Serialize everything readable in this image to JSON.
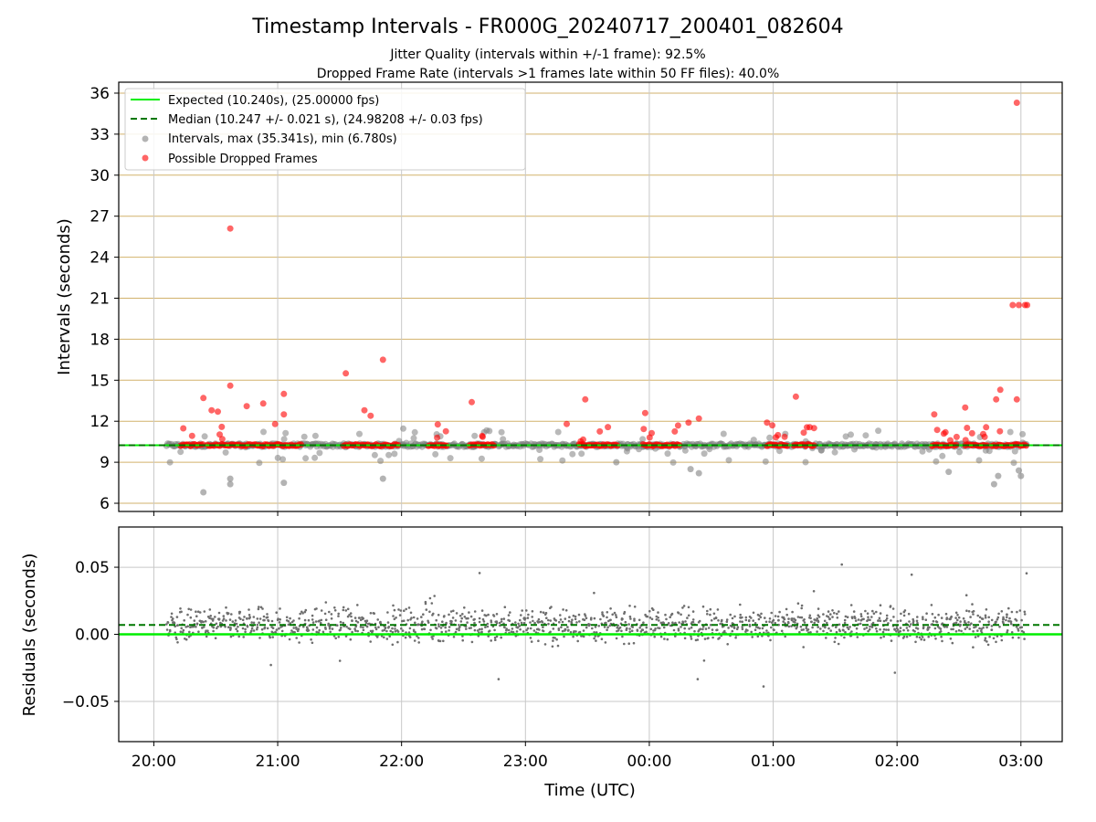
{
  "title": "Timestamp Intervals - FR000G_20240717_200401_082604",
  "subtitle_1": "Jitter Quality (intervals within +/-1 frame): 92.5%",
  "subtitle_2": "Dropped Frame Rate (intervals >1 frames late within 50 FF files): 40.0%",
  "colors": {
    "expected": "#00ee00",
    "median": "#007700",
    "intervals": "#808080",
    "dropped": "#ff0000",
    "hgrid_top": "#d2b26c",
    "grid": "#c8c8c8"
  },
  "chart_data": [
    {
      "type": "scatter",
      "ylabel": "Intervals (seconds)",
      "ylim": [
        5.4,
        36.8
      ],
      "yticks": [
        "6",
        "9",
        "12",
        "15",
        "18",
        "21",
        "24",
        "27",
        "30",
        "33",
        "36"
      ],
      "legend_position": "upper-left",
      "grid": true,
      "legend": {
        "expected": "Expected (10.240s), (25.00000 fps)",
        "median": "Median (10.247 +/- 0.021 s), (24.98208 +/- 0.03 fps)",
        "intervals": "Intervals, max (35.341s), min (6.780s)",
        "dropped": "Possible Dropped Frames"
      },
      "expected_value": 10.24,
      "median_value": 10.247,
      "outliers_high": [
        {
          "t": "20:24",
          "y": 13.7
        },
        {
          "t": "20:28",
          "y": 12.8
        },
        {
          "t": "20:31",
          "y": 12.7
        },
        {
          "t": "20:37",
          "y": 26.1
        },
        {
          "t": "20:37",
          "y": 14.6
        },
        {
          "t": "20:45",
          "y": 13.1
        },
        {
          "t": "20:53",
          "y": 13.3
        },
        {
          "t": "21:03",
          "y": 14.0
        },
        {
          "t": "21:03",
          "y": 12.5
        },
        {
          "t": "21:33",
          "y": 15.5
        },
        {
          "t": "21:42",
          "y": 12.8
        },
        {
          "t": "21:45",
          "y": 12.4
        },
        {
          "t": "21:51",
          "y": 16.5
        },
        {
          "t": "22:34",
          "y": 13.4
        },
        {
          "t": "23:20",
          "y": 11.8
        },
        {
          "t": "23:29",
          "y": 13.6
        },
        {
          "t": "23:58",
          "y": 12.6
        },
        {
          "t": "00:19",
          "y": 11.9
        },
        {
          "t": "00:24",
          "y": 12.2
        },
        {
          "t": "00:57",
          "y": 11.9
        },
        {
          "t": "01:11",
          "y": 13.8
        },
        {
          "t": "02:18",
          "y": 12.5
        },
        {
          "t": "02:33",
          "y": 13.0
        },
        {
          "t": "02:48",
          "y": 13.6
        },
        {
          "t": "02:50",
          "y": 14.3
        },
        {
          "t": "02:56",
          "y": 20.5
        },
        {
          "t": "02:58",
          "y": 35.3
        },
        {
          "t": "02:58",
          "y": 13.6
        },
        {
          "t": "02:59",
          "y": 20.5
        },
        {
          "t": "03:02",
          "y": 20.5
        },
        {
          "t": "03:03",
          "y": 20.5
        }
      ],
      "outliers_low": [
        {
          "t": "20:24",
          "y": 6.8
        },
        {
          "t": "20:37",
          "y": 7.4
        },
        {
          "t": "20:37",
          "y": 7.8
        },
        {
          "t": "21:03",
          "y": 7.5
        },
        {
          "t": "21:51",
          "y": 7.8
        },
        {
          "t": "23:44",
          "y": 9.0
        },
        {
          "t": "00:20",
          "y": 8.5
        },
        {
          "t": "00:24",
          "y": 8.2
        },
        {
          "t": "02:25",
          "y": 8.3
        },
        {
          "t": "02:47",
          "y": 7.4
        },
        {
          "t": "02:49",
          "y": 8.0
        },
        {
          "t": "02:59",
          "y": 8.4
        },
        {
          "t": "03:00",
          "y": 8.0
        }
      ]
    },
    {
      "type": "scatter",
      "ylabel": "Residuals (seconds)",
      "xlabel": "Time (UTC)",
      "ylim": [
        -0.08,
        0.08
      ],
      "yticks": [
        "0.05",
        "0.00",
        "−0.05"
      ],
      "xticks": [
        "20:00",
        "21:00",
        "22:00",
        "23:00",
        "00:00",
        "01:00",
        "02:00",
        "03:00"
      ],
      "grid": true,
      "expected_value": 0.0,
      "median_value": 0.007
    }
  ]
}
